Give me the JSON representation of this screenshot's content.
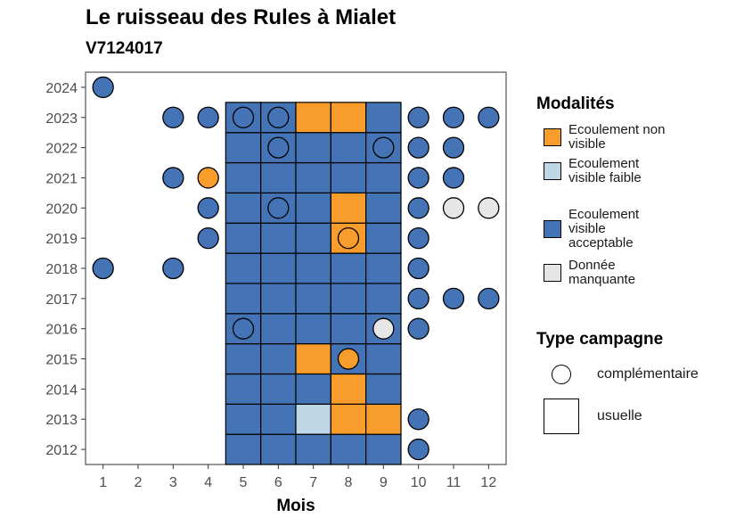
{
  "header": {
    "title": "Le ruisseau des Rules à Mialet",
    "subtitle": "V7124017"
  },
  "chart_data": {
    "type": "heatmap",
    "xlabel": "Mois",
    "ylabel": "",
    "x_ticks": [
      "1",
      "2",
      "3",
      "4",
      "5",
      "6",
      "7",
      "8",
      "9",
      "10",
      "11",
      "12"
    ],
    "y_ticks": [
      "2012",
      "2013",
      "2014",
      "2015",
      "2016",
      "2017",
      "2018",
      "2019",
      "2020",
      "2021",
      "2022",
      "2023",
      "2024"
    ],
    "xlim": [
      0.5,
      12.5
    ],
    "ylim": [
      2011.5,
      2024.5
    ],
    "grid": false,
    "legend_placement": "right",
    "colors": {
      "Ecoulement non visible": "#F89C2C",
      "Ecoulement visible faible": "#BDD7E7",
      "Ecoulement visible acceptable": "#4474B6",
      "Donnée manquante": "#E6E6E6"
    },
    "usuelle": [
      {
        "year": 2012,
        "values": [
          "Ecoulement visible acceptable",
          "Ecoulement visible acceptable",
          "Ecoulement visible acceptable",
          "Ecoulement visible acceptable",
          "Ecoulement visible acceptable"
        ]
      },
      {
        "year": 2013,
        "values": [
          "Ecoulement visible acceptable",
          "Ecoulement visible acceptable",
          "Ecoulement visible faible",
          "Ecoulement non visible",
          "Ecoulement non visible"
        ]
      },
      {
        "year": 2014,
        "values": [
          "Ecoulement visible acceptable",
          "Ecoulement visible acceptable",
          "Ecoulement visible acceptable",
          "Ecoulement non visible",
          "Ecoulement visible acceptable"
        ]
      },
      {
        "year": 2015,
        "values": [
          "Ecoulement visible acceptable",
          "Ecoulement visible acceptable",
          "Ecoulement non visible",
          "Ecoulement visible acceptable",
          "Ecoulement visible acceptable"
        ]
      },
      {
        "year": 2016,
        "values": [
          "Ecoulement visible acceptable",
          "Ecoulement visible acceptable",
          "Ecoulement visible acceptable",
          "Ecoulement visible acceptable",
          "Ecoulement visible acceptable"
        ]
      },
      {
        "year": 2017,
        "values": [
          "Ecoulement visible acceptable",
          "Ecoulement visible acceptable",
          "Ecoulement visible acceptable",
          "Ecoulement visible acceptable",
          "Ecoulement visible acceptable"
        ]
      },
      {
        "year": 2018,
        "values": [
          "Ecoulement visible acceptable",
          "Ecoulement visible acceptable",
          "Ecoulement visible acceptable",
          "Ecoulement visible acceptable",
          "Ecoulement visible acceptable"
        ]
      },
      {
        "year": 2019,
        "values": [
          "Ecoulement visible acceptable",
          "Ecoulement visible acceptable",
          "Ecoulement visible acceptable",
          "Ecoulement non visible",
          "Ecoulement visible acceptable"
        ]
      },
      {
        "year": 2020,
        "values": [
          "Ecoulement visible acceptable",
          "Ecoulement visible acceptable",
          "Ecoulement visible acceptable",
          "Ecoulement non visible",
          "Ecoulement visible acceptable"
        ]
      },
      {
        "year": 2021,
        "values": [
          "Ecoulement visible acceptable",
          "Ecoulement visible acceptable",
          "Ecoulement visible acceptable",
          "Ecoulement visible acceptable",
          "Ecoulement visible acceptable"
        ]
      },
      {
        "year": 2022,
        "values": [
          "Ecoulement visible acceptable",
          "Ecoulement visible acceptable",
          "Ecoulement visible acceptable",
          "Ecoulement visible acceptable",
          "Ecoulement visible acceptable"
        ]
      },
      {
        "year": 2023,
        "values": [
          "Ecoulement visible acceptable",
          "Ecoulement visible acceptable",
          "Ecoulement non visible",
          "Ecoulement non visible",
          "Ecoulement visible acceptable"
        ]
      }
    ],
    "usuelle_months": [
      5,
      6,
      7,
      8,
      9
    ],
    "complementaire": [
      {
        "year": 2024,
        "month": 1,
        "value": "Ecoulement visible acceptable"
      },
      {
        "year": 2023,
        "month": 3,
        "value": "Ecoulement visible acceptable"
      },
      {
        "year": 2023,
        "month": 4,
        "value": "Ecoulement visible acceptable"
      },
      {
        "year": 2023,
        "month": 5,
        "value": "Ecoulement visible acceptable"
      },
      {
        "year": 2023,
        "month": 6,
        "value": "Ecoulement visible acceptable"
      },
      {
        "year": 2023,
        "month": 10,
        "value": "Ecoulement visible acceptable"
      },
      {
        "year": 2023,
        "month": 11,
        "value": "Ecoulement visible acceptable"
      },
      {
        "year": 2023,
        "month": 12,
        "value": "Ecoulement visible acceptable"
      },
      {
        "year": 2022,
        "month": 6,
        "value": "Ecoulement visible acceptable"
      },
      {
        "year": 2022,
        "month": 9,
        "value": "Ecoulement visible acceptable"
      },
      {
        "year": 2022,
        "month": 10,
        "value": "Ecoulement visible acceptable"
      },
      {
        "year": 2022,
        "month": 11,
        "value": "Ecoulement visible acceptable"
      },
      {
        "year": 2021,
        "month": 3,
        "value": "Ecoulement visible acceptable"
      },
      {
        "year": 2021,
        "month": 4,
        "value": "Ecoulement non visible"
      },
      {
        "year": 2021,
        "month": 10,
        "value": "Ecoulement visible acceptable"
      },
      {
        "year": 2021,
        "month": 11,
        "value": "Ecoulement visible acceptable"
      },
      {
        "year": 2020,
        "month": 4,
        "value": "Ecoulement visible acceptable"
      },
      {
        "year": 2020,
        "month": 6,
        "value": "Ecoulement visible acceptable"
      },
      {
        "year": 2020,
        "month": 10,
        "value": "Ecoulement visible acceptable"
      },
      {
        "year": 2020,
        "month": 11,
        "value": "Donnée manquante"
      },
      {
        "year": 2020,
        "month": 12,
        "value": "Donnée manquante"
      },
      {
        "year": 2019,
        "month": 4,
        "value": "Ecoulement visible acceptable"
      },
      {
        "year": 2019,
        "month": 8,
        "value": "Ecoulement non visible"
      },
      {
        "year": 2019,
        "month": 10,
        "value": "Ecoulement visible acceptable"
      },
      {
        "year": 2018,
        "month": 1,
        "value": "Ecoulement visible acceptable"
      },
      {
        "year": 2018,
        "month": 3,
        "value": "Ecoulement visible acceptable"
      },
      {
        "year": 2018,
        "month": 10,
        "value": "Ecoulement visible acceptable"
      },
      {
        "year": 2017,
        "month": 10,
        "value": "Ecoulement visible acceptable"
      },
      {
        "year": 2017,
        "month": 11,
        "value": "Ecoulement visible acceptable"
      },
      {
        "year": 2017,
        "month": 12,
        "value": "Ecoulement visible acceptable"
      },
      {
        "year": 2016,
        "month": 5,
        "value": "Ecoulement visible acceptable"
      },
      {
        "year": 2016,
        "month": 9,
        "value": "Donnée manquante"
      },
      {
        "year": 2016,
        "month": 10,
        "value": "Ecoulement visible acceptable"
      },
      {
        "year": 2015,
        "month": 8,
        "value": "Ecoulement non visible"
      },
      {
        "year": 2013,
        "month": 10,
        "value": "Ecoulement visible acceptable"
      },
      {
        "year": 2012,
        "month": 10,
        "value": "Ecoulement visible acceptable"
      }
    ]
  },
  "legend": {
    "modalites_title": "Modalités",
    "modalites": [
      {
        "label": "Ecoulement non visible",
        "color": "#F89C2C"
      },
      {
        "label": "Ecoulement visible faible",
        "color": "#BDD7E7"
      },
      {
        "label": "Ecoulement visible acceptable",
        "color": "#4474B6"
      },
      {
        "label": "Donnée manquante",
        "color": "#E6E6E6"
      }
    ],
    "type_title": "Type campagne",
    "types": [
      {
        "label": "complémentaire",
        "shape": "circle"
      },
      {
        "label": "usuelle",
        "shape": "square"
      }
    ]
  }
}
